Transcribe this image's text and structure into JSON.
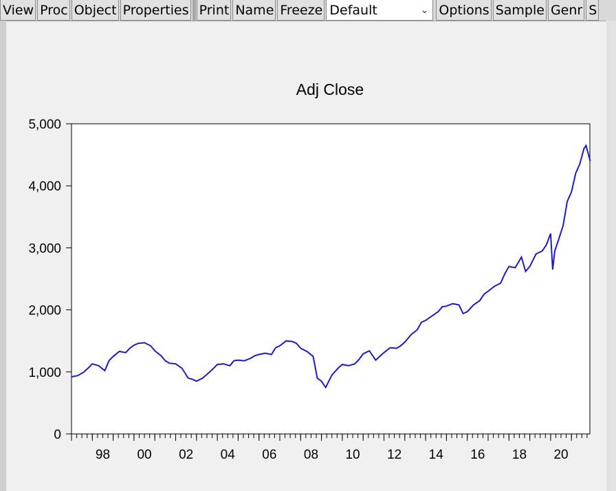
{
  "toolbar": {
    "buttons_left": [
      "View",
      "Proc",
      "Object",
      "Properties"
    ],
    "buttons_mid": [
      "Print",
      "Name",
      "Freeze"
    ],
    "select_value": "Default",
    "buttons_right": [
      "Options",
      "Sample",
      "Genr",
      "S"
    ]
  },
  "colors": {
    "series": "#1a1ac8",
    "plot_bg": "#ffffff",
    "window_bg": "#f0f0f0"
  },
  "chart_data": {
    "type": "line",
    "title": "Adj Close",
    "xlabel": "",
    "ylabel": "",
    "x_ticks": [
      "98",
      "00",
      "02",
      "04",
      "06",
      "08",
      "10",
      "12",
      "14",
      "16",
      "18",
      "20"
    ],
    "x_range": [
      1997.0,
      2021.9
    ],
    "ylim": [
      0,
      5000
    ],
    "y_ticks": [
      "0",
      "1,000",
      "2,000",
      "3,000",
      "4,000",
      "5,000"
    ],
    "grid": false,
    "series": [
      {
        "name": "",
        "x": [
          1997.0,
          1997.3,
          1997.6,
          1997.8,
          1998.0,
          1998.3,
          1998.6,
          1998.8,
          1999.0,
          1999.3,
          1999.6,
          1999.8,
          2000.0,
          2000.2,
          2000.5,
          2000.8,
          2001.0,
          2001.3,
          2001.5,
          2001.7,
          2002.0,
          2002.3,
          2002.6,
          2002.8,
          2003.0,
          2003.3,
          2003.6,
          2003.8,
          2004.0,
          2004.3,
          2004.6,
          2004.8,
          2005.0,
          2005.3,
          2005.6,
          2005.8,
          2006.0,
          2006.3,
          2006.6,
          2006.8,
          2007.0,
          2007.3,
          2007.6,
          2007.8,
          2008.0,
          2008.3,
          2008.6,
          2008.8,
          2009.0,
          2009.2,
          2009.5,
          2009.8,
          2010.0,
          2010.3,
          2010.6,
          2010.8,
          2011.0,
          2011.3,
          2011.6,
          2011.8,
          2012.0,
          2012.3,
          2012.6,
          2012.8,
          2013.0,
          2013.3,
          2013.6,
          2013.8,
          2014.0,
          2014.3,
          2014.6,
          2014.8,
          2015.0,
          2015.3,
          2015.6,
          2015.8,
          2016.0,
          2016.3,
          2016.6,
          2016.8,
          2017.0,
          2017.3,
          2017.6,
          2017.8,
          2018.0,
          2018.3,
          2018.6,
          2018.8,
          2019.0,
          2019.3,
          2019.6,
          2019.8,
          2020.0,
          2020.1,
          2020.2,
          2020.4,
          2020.6,
          2020.8,
          2021.0,
          2021.2,
          2021.4,
          2021.6,
          2021.7,
          2021.9
        ],
        "y": [
          920,
          940,
          1000,
          1060,
          1130,
          1100,
          1020,
          1180,
          1250,
          1330,
          1310,
          1380,
          1430,
          1460,
          1470,
          1420,
          1340,
          1260,
          1180,
          1140,
          1130,
          1060,
          900,
          880,
          850,
          900,
          990,
          1050,
          1120,
          1130,
          1100,
          1180,
          1190,
          1180,
          1220,
          1260,
          1280,
          1300,
          1280,
          1390,
          1420,
          1500,
          1490,
          1460,
          1380,
          1330,
          1250,
          900,
          850,
          750,
          950,
          1060,
          1120,
          1100,
          1130,
          1200,
          1290,
          1340,
          1190,
          1250,
          1310,
          1390,
          1380,
          1420,
          1480,
          1600,
          1680,
          1800,
          1830,
          1900,
          1970,
          2050,
          2060,
          2100,
          2080,
          1940,
          1970,
          2080,
          2150,
          2250,
          2300,
          2380,
          2430,
          2580,
          2700,
          2680,
          2850,
          2620,
          2700,
          2900,
          2950,
          3050,
          3230,
          2650,
          2950,
          3150,
          3360,
          3750,
          3900,
          4200,
          4350,
          4600,
          4650,
          4400
        ]
      }
    ]
  }
}
